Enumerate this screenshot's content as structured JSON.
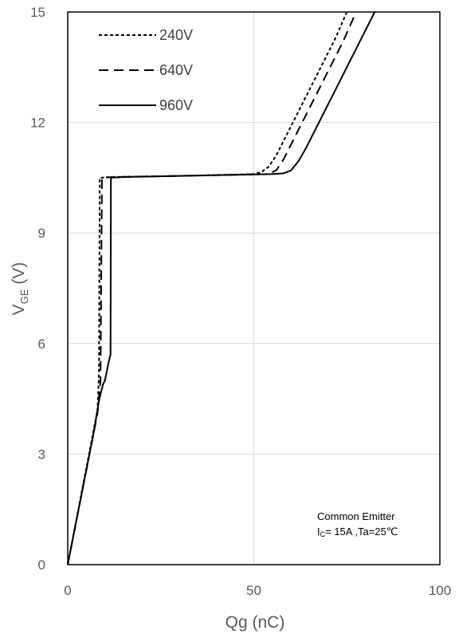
{
  "chart_data": {
    "type": "line",
    "title": "",
    "xlabel": "Qg (nC)",
    "ylabel": {
      "main": "V",
      "sub": "GE",
      "unit": " (V)"
    },
    "xlim": [
      0,
      100
    ],
    "ylim": [
      0,
      15
    ],
    "x_ticks": [
      {
        "value": 0,
        "label": "0"
      },
      {
        "value": 50,
        "label": "50"
      },
      {
        "value": 100,
        "label": "100"
      }
    ],
    "y_ticks": [
      {
        "value": 0,
        "label": "0"
      },
      {
        "value": 3,
        "label": "3"
      },
      {
        "value": 6,
        "label": "6"
      },
      {
        "value": 9,
        "label": "9"
      },
      {
        "value": 12,
        "label": "12"
      },
      {
        "value": 15,
        "label": "15"
      }
    ],
    "grid": true,
    "legend_position": "top-left",
    "series": [
      {
        "name": "240V",
        "style": "dotted",
        "color": "#000000",
        "points": [
          [
            0,
            0
          ],
          [
            8,
            4.2
          ],
          [
            8.4,
            5.2
          ],
          [
            8.6,
            10.5
          ],
          [
            12,
            10.52
          ],
          [
            30,
            10.55
          ],
          [
            50,
            10.6
          ],
          [
            52,
            10.65
          ],
          [
            54,
            10.8
          ],
          [
            56,
            11.1
          ],
          [
            58,
            11.5
          ],
          [
            60,
            11.9
          ],
          [
            63,
            12.5
          ],
          [
            66,
            13.1
          ],
          [
            69,
            13.7
          ],
          [
            72,
            14.3
          ],
          [
            75,
            15.0
          ]
        ]
      },
      {
        "name": "640V",
        "style": "dashed",
        "color": "#000000",
        "points": [
          [
            0,
            0
          ],
          [
            8,
            4.1
          ],
          [
            8.8,
            5.0
          ],
          [
            9.2,
            10.5
          ],
          [
            12,
            10.52
          ],
          [
            30,
            10.55
          ],
          [
            54,
            10.6
          ],
          [
            56,
            10.7
          ],
          [
            58,
            11.0
          ],
          [
            60,
            11.4
          ],
          [
            62,
            11.8
          ],
          [
            65,
            12.4
          ],
          [
            68,
            13.0
          ],
          [
            71,
            13.6
          ],
          [
            74,
            14.2
          ],
          [
            77.5,
            15.0
          ]
        ]
      },
      {
        "name": "960V",
        "style": "solid",
        "color": "#000000",
        "points": [
          [
            0,
            0
          ],
          [
            7,
            3.6
          ],
          [
            8.5,
            4.5
          ],
          [
            9.5,
            4.9
          ],
          [
            10,
            5.0
          ],
          [
            11,
            5.5
          ],
          [
            11.5,
            5.7
          ],
          [
            11.6,
            10.5
          ],
          [
            15,
            10.52
          ],
          [
            30,
            10.55
          ],
          [
            55,
            10.6
          ],
          [
            58,
            10.62
          ],
          [
            60,
            10.7
          ],
          [
            62,
            10.95
          ],
          [
            64,
            11.3
          ],
          [
            66,
            11.7
          ],
          [
            69,
            12.3
          ],
          [
            72,
            12.9
          ],
          [
            75,
            13.5
          ],
          [
            78,
            14.1
          ],
          [
            81,
            14.7
          ],
          [
            82.5,
            15.0
          ]
        ]
      }
    ],
    "annotation": {
      "line1": "Common Emitter",
      "line2_prefix": "I",
      "line2_sub": "C",
      "line2_rest": "= 15A ,Ta=25℃"
    }
  }
}
